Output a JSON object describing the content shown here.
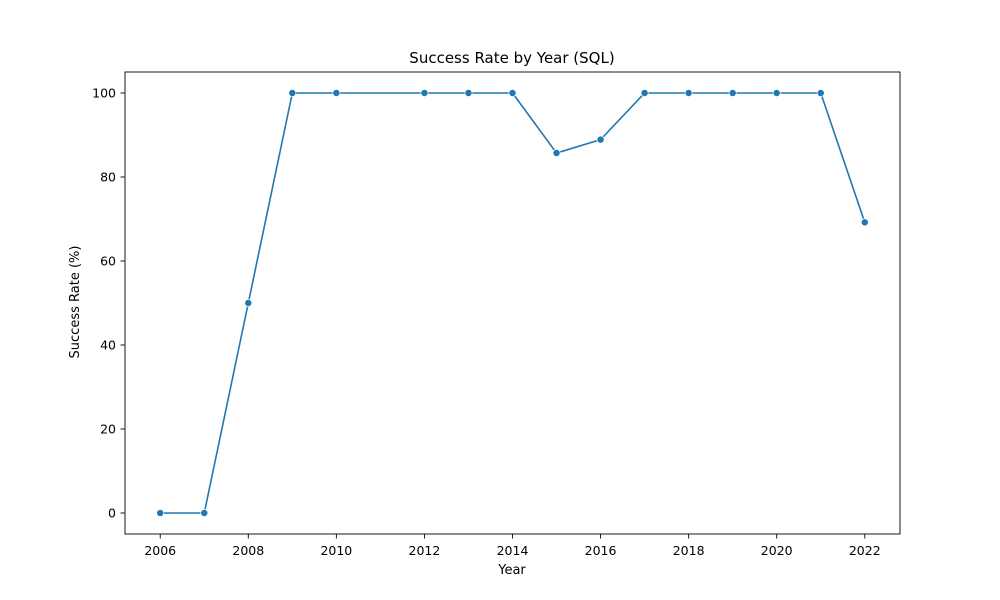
{
  "chart_data": {
    "type": "line",
    "title": "Success Rate by Year (SQL)",
    "xlabel": "Year",
    "ylabel": "Success Rate (%)",
    "x": [
      2006,
      2007,
      2008,
      2009,
      2010,
      2012,
      2013,
      2014,
      2015,
      2016,
      2017,
      2018,
      2019,
      2020,
      2021,
      2022
    ],
    "series": [
      {
        "values": [
          0,
          0,
          50,
          100,
          100,
          100,
          100,
          100,
          85.7,
          88.9,
          100,
          100,
          100,
          100,
          100,
          69.2
        ],
        "color": "#1f77b4"
      }
    ],
    "xlim": [
      2005.2,
      2022.8
    ],
    "ylim": [
      -5,
      105
    ],
    "xticks": [
      2006,
      2008,
      2010,
      2012,
      2014,
      2016,
      2018,
      2020,
      2022
    ],
    "xtick_labels": [
      "2006",
      "2008",
      "2010",
      "2012",
      "2014",
      "2016",
      "2018",
      "2020",
      "2022"
    ],
    "yticks": [
      0,
      20,
      40,
      60,
      80,
      100
    ],
    "ytick_labels": [
      "0",
      "20",
      "40",
      "60",
      "80",
      "100"
    ],
    "grid": false,
    "legend": "none",
    "markers": "circle"
  }
}
